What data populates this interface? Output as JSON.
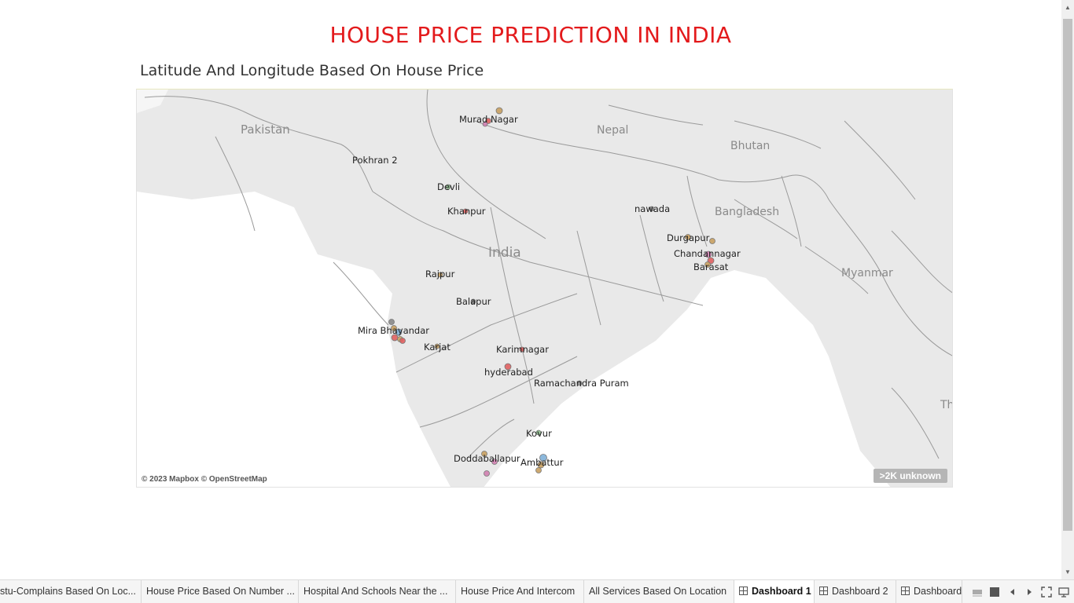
{
  "dashboard": {
    "title": "HOUSE PRICE PREDICTION IN INDIA",
    "subtitle": "Latitude And Longitude Based On House Price"
  },
  "map": {
    "attribution": "© 2023 Mapbox © OpenStreetMap",
    "unknown_badge": ">2K unknown",
    "country_labels": [
      {
        "name": "Pakistan"
      },
      {
        "name": "Nepal"
      },
      {
        "name": "Bhutan"
      },
      {
        "name": "Bangladesh"
      },
      {
        "name": "India"
      },
      {
        "name": "Myanmar"
      },
      {
        "name": "Th"
      }
    ],
    "city_labels": [
      "Murad Nagar",
      "Pokhran 2",
      "Devli",
      "Khanpur",
      "nawada",
      "Durgapur",
      "Chandannagar",
      "Barasat",
      "Rajpur",
      "Balapur",
      "Mira Bhayandar",
      "Karjat",
      "Karimnagar",
      "hyderabad",
      "Ramachandra Puram",
      "Kovur",
      "Doddaballapur",
      "Ambattur"
    ],
    "colors": {
      "land": "#e9e9e9",
      "water": "#ffffff",
      "border": "#9a9a9a",
      "mark_orange": "#c8a060",
      "mark_red": "#e06060",
      "mark_pink": "#d080b0",
      "mark_blue": "#80b0d8",
      "mark_grey": "#888888",
      "mark_green": "#8cc08c"
    }
  },
  "tabs": [
    {
      "label": "stu-Complains Based On Loc..."
    },
    {
      "label": "House Price Based On Number ..."
    },
    {
      "label": "Hospital And Schools Near the ..."
    },
    {
      "label": "House Price And Intercom"
    },
    {
      "label": "All Services Based On Location"
    },
    {
      "label": "Dashboard 1"
    },
    {
      "label": "Dashboard 2"
    },
    {
      "label": "Dashboard"
    }
  ],
  "icons": {
    "scroll_up": "chevron-up-icon",
    "scroll_down": "chevron-down-icon",
    "tab_icon": "dashboard-grid-icon",
    "controls": [
      "filmstrip-icon",
      "tabs-view-icon",
      "prev-icon",
      "next-icon",
      "fullscreen-icon",
      "presentation-icon"
    ]
  }
}
